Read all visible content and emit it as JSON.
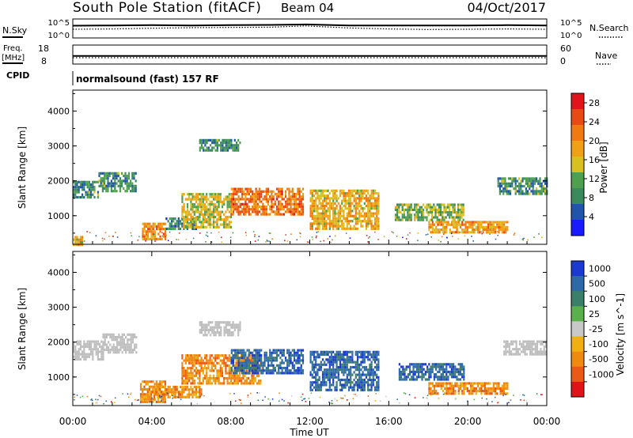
{
  "header": {
    "station": "South Pole Station (fitACF)",
    "beam": "Beam 04",
    "date": "04/Oct/2017"
  },
  "sky_panel": {
    "left_label": "N.Sky",
    "right_label": "N.Search",
    "ticks": [
      "10^5",
      "10^0"
    ]
  },
  "freq_panel": {
    "left_label_line1": "Freq.",
    "left_label_line2": "[MHz]",
    "left_ticks": [
      "18",
      "8"
    ],
    "right_label": "Nave",
    "right_ticks": [
      "60",
      "0"
    ]
  },
  "cpid": {
    "label": "CPID",
    "text": "normalsound (fast) 157 RF"
  },
  "time_axis": {
    "ticks": [
      "00:00",
      "04:00",
      "08:00",
      "12:00",
      "16:00",
      "20:00",
      "00:00"
    ],
    "label": "Time UT"
  },
  "colors": {
    "power_scale": [
      "#1a1aff",
      "#2255aa",
      "#3b8a5e",
      "#4fa04e",
      "#d8c01e",
      "#f0a014",
      "#ef7a12",
      "#e84a14",
      "#e0141a"
    ],
    "velocity_scale": [
      "#1a3ad0",
      "#2f6aa8",
      "#3b7e6a",
      "#5ab04a",
      "#c8c8c8",
      "#f0b010",
      "#ef8a10",
      "#ea5a14",
      "#e01418"
    ],
    "ground_scatter": "#bebebe"
  },
  "chart_data": [
    {
      "type": "line",
      "title": "N.Sky / N.Search",
      "x_range_hours": [
        0,
        24
      ],
      "ylim_log10": [
        0,
        5
      ],
      "series": [
        {
          "name": "N.Sky",
          "x": [
            0,
            2,
            4,
            6,
            8,
            10,
            11.8,
            14,
            16,
            18,
            20,
            22,
            24
          ],
          "values": [
            3.6,
            3.7,
            3.8,
            3.7,
            3.8,
            3.9,
            4.1,
            3.7,
            3.7,
            3.7,
            3.7,
            3.8,
            3.7
          ]
        },
        {
          "name": "N.Search",
          "x": [
            0,
            2,
            4,
            6,
            8,
            10,
            11.8,
            14,
            16,
            18,
            20,
            22,
            24
          ],
          "values": [
            2.2,
            2.3,
            2.6,
            2.8,
            2.9,
            3.0,
            3.5,
            2.7,
            2.3,
            2.1,
            2.2,
            2.3,
            2.2
          ]
        }
      ]
    },
    {
      "type": "line",
      "title": "Freq. [MHz] / Nave",
      "x_range_hours": [
        0,
        24
      ],
      "series": [
        {
          "name": "Freq. [MHz]",
          "x": [
            0,
            24
          ],
          "values": [
            12.1,
            12.1
          ],
          "ylim": [
            8,
            18
          ]
        },
        {
          "name": "Nave",
          "x": [
            0,
            24
          ],
          "values": [
            18,
            18
          ],
          "ylim": [
            0,
            60
          ]
        }
      ]
    },
    {
      "type": "heatmap",
      "title": "Power [dB]",
      "xlabel": "Time UT",
      "ylabel": "Slant Range [km]",
      "x_range_hours": [
        0,
        24
      ],
      "ylim": [
        180,
        4600
      ],
      "y_ticks": [
        1000,
        2000,
        3000,
        4000
      ],
      "colorbar": {
        "label": "Power [dB]",
        "ticks": [
          4,
          8,
          12,
          16,
          20,
          24,
          28
        ],
        "range": [
          0,
          30
        ]
      },
      "regions": [
        {
          "t0": 0.0,
          "t1": 0.5,
          "r0": 200,
          "r1": 420,
          "value": 17
        },
        {
          "t0": 0.0,
          "t1": 1.3,
          "r0": 1500,
          "r1": 2000,
          "value": 8
        },
        {
          "t0": 1.3,
          "t1": 3.2,
          "r0": 1700,
          "r1": 2250,
          "value": 8
        },
        {
          "t0": 3.5,
          "t1": 4.7,
          "r0": 300,
          "r1": 800,
          "value": 21
        },
        {
          "t0": 4.7,
          "t1": 6.2,
          "r0": 600,
          "r1": 950,
          "value": 7
        },
        {
          "t0": 5.5,
          "t1": 8.0,
          "r0": 700,
          "r1": 1650,
          "value": 15
        },
        {
          "t0": 8.0,
          "t1": 11.7,
          "r0": 1050,
          "r1": 1800,
          "value": 23
        },
        {
          "t0": 12.0,
          "t1": 15.5,
          "r0": 650,
          "r1": 1750,
          "value": 18
        },
        {
          "t0": 16.3,
          "t1": 19.8,
          "r0": 900,
          "r1": 1350,
          "value": 12
        },
        {
          "t0": 18.0,
          "t1": 22.0,
          "r0": 500,
          "r1": 850,
          "value": 20
        },
        {
          "t0": 21.5,
          "t1": 24.0,
          "r0": 1650,
          "r1": 2100,
          "value": 8
        },
        {
          "t0": 6.4,
          "t1": 8.5,
          "r0": 2850,
          "r1": 3200,
          "value": 8
        }
      ]
    },
    {
      "type": "heatmap",
      "title": "Velocity [m s-1]",
      "xlabel": "Time UT",
      "ylabel": "Slant Range [km]",
      "x_range_hours": [
        0,
        24
      ],
      "ylim": [
        180,
        4600
      ],
      "y_ticks": [
        1000,
        2000,
        3000,
        4000
      ],
      "colorbar": {
        "label": "Velocity [m s^-1]",
        "ticks": [
          1000,
          500,
          100,
          25,
          -25,
          -100,
          -500,
          -1000
        ]
      },
      "regions": [
        {
          "t0": 0.0,
          "t1": 1.5,
          "r0": 1500,
          "r1": 2050,
          "value": 0
        },
        {
          "t0": 1.5,
          "t1": 3.2,
          "r0": 1700,
          "r1": 2250,
          "value": 0
        },
        {
          "t0": 3.4,
          "t1": 4.7,
          "r0": 300,
          "r1": 900,
          "value": -300
        },
        {
          "t0": 4.0,
          "t1": 6.5,
          "r0": 450,
          "r1": 750,
          "value": -400
        },
        {
          "t0": 5.5,
          "t1": 9.5,
          "r0": 800,
          "r1": 1650,
          "value": -300
        },
        {
          "t0": 8.0,
          "t1": 11.7,
          "r0": 1100,
          "r1": 1800,
          "value": 200
        },
        {
          "t0": 12.0,
          "t1": 15.5,
          "r0": 650,
          "r1": 1750,
          "value": 150
        },
        {
          "t0": 16.5,
          "t1": 19.8,
          "r0": 900,
          "r1": 1400,
          "value": 120
        },
        {
          "t0": 18.0,
          "t1": 22.0,
          "r0": 500,
          "r1": 850,
          "value": -400
        },
        {
          "t0": 21.8,
          "t1": 24.0,
          "r0": 1650,
          "r1": 2050,
          "value": 0
        },
        {
          "t0": 6.4,
          "t1": 8.5,
          "r0": 2200,
          "r1": 2600,
          "value": 0
        }
      ]
    }
  ]
}
